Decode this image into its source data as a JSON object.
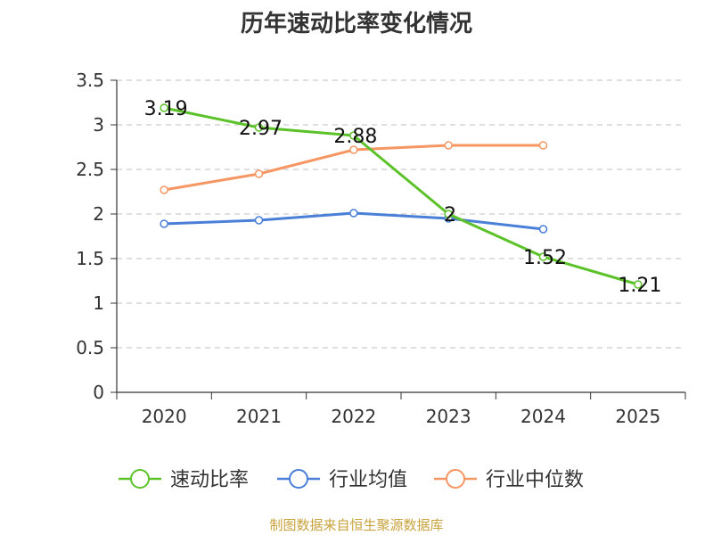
{
  "title": "历年速动比率变化情况",
  "source_note": "制图数据来自恒生聚源数据库",
  "chart_data": {
    "type": "line",
    "title": "历年速动比率变化情况",
    "categories": [
      "2020",
      "2021",
      "2022",
      "2023",
      "2024",
      "2025"
    ],
    "y_ticks": [
      "0",
      "0.5",
      "1",
      "1.5",
      "2",
      "2.5",
      "3",
      "3.5"
    ],
    "ylim": [
      0,
      3.5
    ],
    "grid": true,
    "legend_position": "bottom",
    "series": [
      {
        "name": "速动比率",
        "color": "#5cc229",
        "values": [
          3.19,
          2.97,
          2.88,
          2.0,
          1.52,
          1.21
        ],
        "labels": [
          "3.19",
          "2.97",
          "2.88",
          "2",
          "1.52",
          "1.21"
        ]
      },
      {
        "name": "行业均值",
        "color": "#4a7fd7",
        "values": [
          1.89,
          1.93,
          2.01,
          1.95,
          1.83,
          null
        ],
        "labels": []
      },
      {
        "name": "行业中位数",
        "color": "#f59663",
        "values": [
          2.27,
          2.45,
          2.72,
          2.77,
          2.77,
          null
        ],
        "labels": []
      }
    ]
  }
}
